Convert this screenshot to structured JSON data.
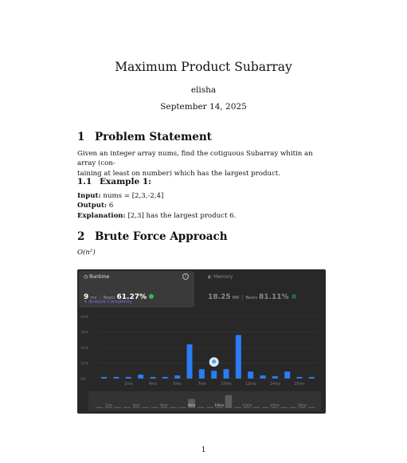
{
  "document": {
    "title": "Maximum Product Subarray",
    "author": "elisha",
    "date": "September 14, 2025",
    "page_number": "1"
  },
  "sections": [
    {
      "num": "1",
      "title": "Problem Statement"
    },
    {
      "num": "2",
      "title": "Brute Force Approach"
    }
  ],
  "problem": {
    "line1": "Given an integer array nums, find the cotiguous Subarray whitin an array (con-",
    "line2": "taining at least on number) which has the largest product."
  },
  "example": {
    "num": "1.1",
    "title": "Example 1:",
    "input_label": "Input:",
    "input_value": "nums = [2,3,-2,4]",
    "output_label": "Output:",
    "output_value": "6",
    "explanation_label": "Explanation:",
    "explanation_value": "[2,3] has the largest product 6."
  },
  "complexity": "O(n²)",
  "leetcode": {
    "runtime_label": "Runtime",
    "runtime_value": "9",
    "runtime_unit": "ms",
    "runtime_beats_label": "Beats",
    "runtime_beats": "61.27%",
    "analyze_label": "Analyze Complexity",
    "memory_label": "Memory",
    "memory_value": "18.25",
    "memory_unit": "MB",
    "memory_beats_label": "Beats",
    "memory_beats": "81.11%",
    "accent_color": "#2a7df6",
    "green": "#2cbb5d",
    "purple": "#7d6cf0"
  },
  "chart_data": {
    "type": "bar",
    "y_tick_labels": [
      "40%",
      "30%",
      "20%",
      "10%",
      "0%"
    ],
    "ylim": [
      0,
      40
    ],
    "x_tick_labels": [
      "2ms",
      "4ms",
      "6ms",
      "7ms",
      "10ms",
      "12ms",
      "14ms",
      "16ms"
    ],
    "values": [
      1,
      1,
      1,
      2.5,
      1,
      1,
      2,
      22,
      6,
      5,
      6,
      28,
      4.5,
      2,
      1.5,
      4.5,
      1,
      1
    ],
    "highlight_index": 9,
    "grid": true,
    "overview_labels": [
      "2ms",
      "4ms",
      "6ms",
      "8ms",
      "10ms",
      "12ms",
      "14ms",
      "16ms"
    ],
    "overview_values": [
      1,
      1,
      1,
      1,
      1,
      1,
      1,
      1,
      1,
      1,
      10,
      1,
      1,
      1,
      14,
      1,
      1,
      1,
      1,
      1,
      1,
      1,
      1,
      1
    ]
  }
}
